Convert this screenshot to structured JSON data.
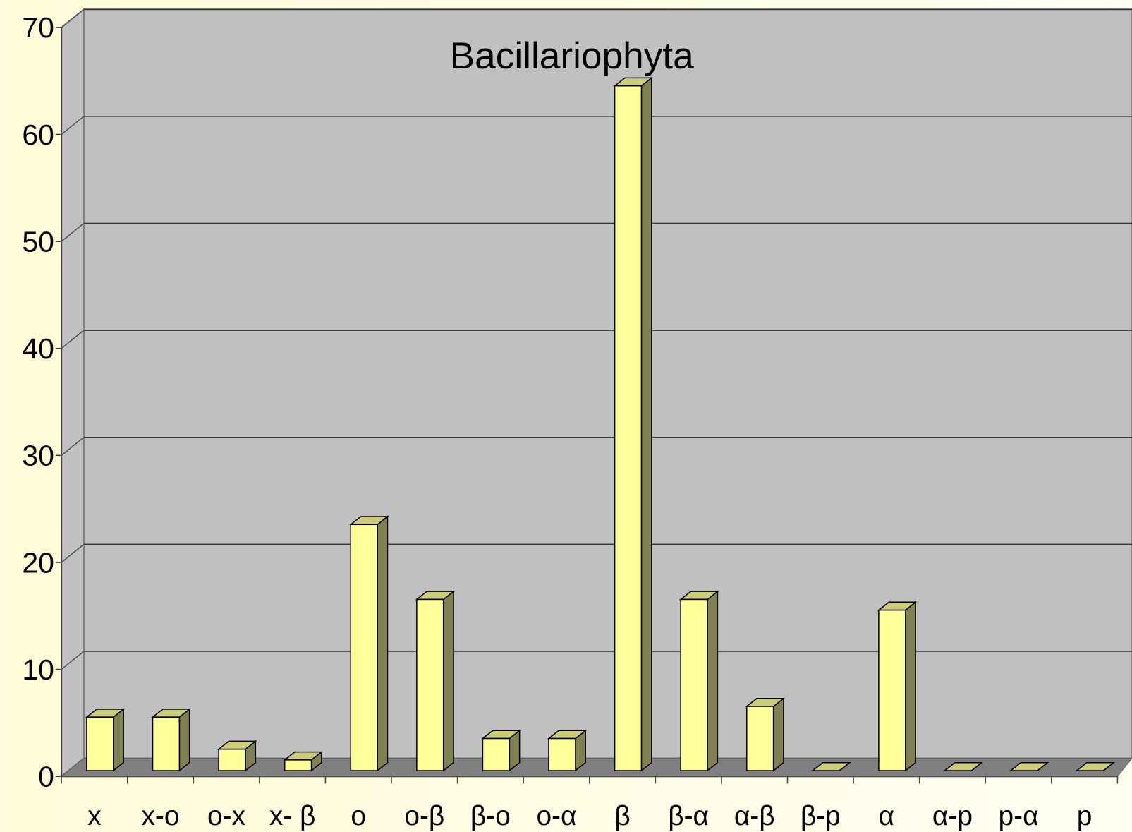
{
  "chart_data": {
    "type": "bar3d",
    "title": "Bacillariophyta",
    "categories": [
      "x",
      "x-o",
      "o-x",
      "x- β",
      "o",
      "o-β",
      "β-o",
      "o-α",
      "β",
      "β-α",
      "α-β",
      "β-p",
      "α",
      "α-p",
      "p-α",
      "p"
    ],
    "values": [
      5,
      5,
      2,
      1,
      23,
      16,
      3,
      3,
      64,
      16,
      6,
      0,
      15,
      0,
      0,
      0
    ],
    "color": "#ffff99",
    "ylim": [
      0,
      70
    ],
    "yticks": [
      0,
      10,
      20,
      30,
      40,
      50,
      60,
      70
    ],
    "grid": true
  }
}
